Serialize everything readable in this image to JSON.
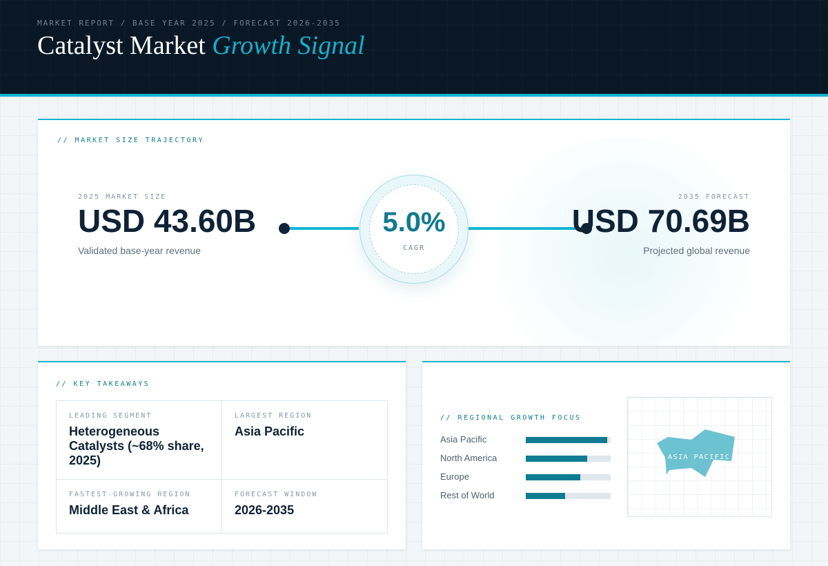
{
  "header": {
    "eyebrow": "MARKET REPORT / BASE YEAR 2025 / FORECAST 2026-2035",
    "title_main": "Catalyst Market",
    "title_accent": "Growth Signal"
  },
  "trajectory": {
    "section_label": "// MARKET SIZE TRAJECTORY",
    "left": {
      "label": "2025 MARKET SIZE",
      "value": "USD 43.60B",
      "sub": "Validated base-year revenue"
    },
    "center": {
      "value": "5.0%",
      "label": "CAGR"
    },
    "right": {
      "label": "2035 FORECAST",
      "value": "USD 70.69B",
      "sub": "Projected global revenue"
    }
  },
  "takeaways": {
    "section_label": "// KEY TAKEAWAYS",
    "items": [
      {
        "label": "LEADING SEGMENT",
        "value": "Heterogeneous Catalysts (~68% share, 2025)"
      },
      {
        "label": "LARGEST REGION",
        "value": "Asia Pacific"
      },
      {
        "label": "FASTEST-GROWING REGION",
        "value": "Middle East & Africa"
      },
      {
        "label": "FORECAST WINDOW",
        "value": "2026-2035"
      }
    ]
  },
  "regional": {
    "section_label": "// REGIONAL GROWTH FOCUS",
    "bars": [
      {
        "label": "Asia Pacific",
        "fill_fraction": 0.96
      },
      {
        "label": "North America",
        "fill_fraction": 0.72
      },
      {
        "label": "Europe",
        "fill_fraction": 0.64
      },
      {
        "label": "Rest of World",
        "fill_fraction": 0.46
      }
    ],
    "map_label": "ASIA PACIFIC"
  },
  "colors": {
    "accent": "#14b6d2",
    "bar_fill": "#0f7c92",
    "bar_track": "#dfe7ed",
    "navy": "#0f2236",
    "map_region": "#6cc2d0"
  }
}
